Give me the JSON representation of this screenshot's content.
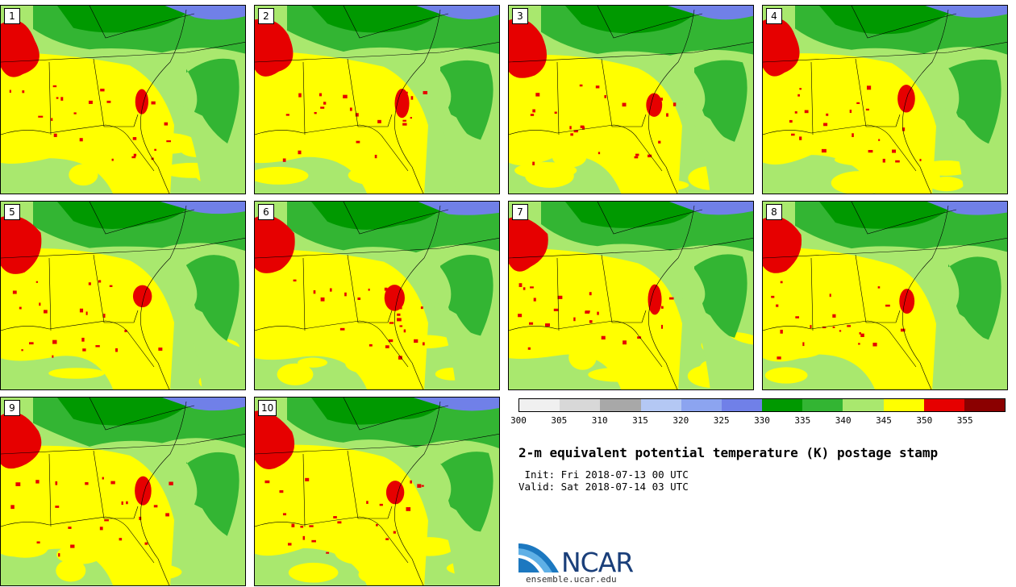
{
  "panels": [
    {
      "label": "1",
      "variant": 0
    },
    {
      "label": "2",
      "variant": 1
    },
    {
      "label": "3",
      "variant": 2
    },
    {
      "label": "4",
      "variant": 3
    },
    {
      "label": "5",
      "variant": 4
    },
    {
      "label": "6",
      "variant": 5
    },
    {
      "label": "7",
      "variant": 6
    },
    {
      "label": "8",
      "variant": 7
    },
    {
      "label": "9",
      "variant": 8
    },
    {
      "label": "10",
      "variant": 9
    }
  ],
  "colorbar": {
    "colors": [
      "#f0f0f0",
      "#d8d8d8",
      "#a8a8a8",
      "#b4c8f4",
      "#8ca4f0",
      "#7080e8",
      "#009900",
      "#33b533",
      "#a9e86e",
      "#ffff00",
      "#e60000",
      "#8b0000"
    ],
    "ticks": [
      "300",
      "305",
      "310",
      "315",
      "320",
      "325",
      "330",
      "335",
      "340",
      "345",
      "350",
      "355"
    ]
  },
  "title": "2-m equivalent potential temperature (K) postage stamp",
  "init": " Init: Fri 2018-07-13 00 UTC",
  "valid": "Valid: Sat 2018-07-14 03 UTC",
  "logo": {
    "text": "NCAR",
    "site": "ensemble.ucar.edu"
  }
}
